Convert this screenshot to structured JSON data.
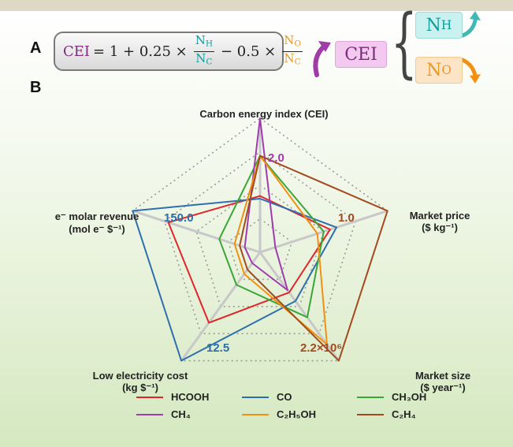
{
  "panel_a_label": "A",
  "panel_b_label": "B",
  "formula": {
    "lhs": "CEI",
    "eq": "= 1 + 0.25 ×",
    "frac1_num": "N",
    "frac1_num_sub": "H",
    "frac1_den": "N",
    "frac1_den_sub": "C",
    "minus": "− 0.5 ×",
    "frac2_num": "N",
    "frac2_num_sub": "O",
    "frac2_den": "N",
    "frac2_den_sub": "C"
  },
  "schematic": {
    "cei": "CEI",
    "nh": "N",
    "nh_sub": "H",
    "no": "N",
    "no_sub": "O"
  },
  "chart_data": {
    "type": "radar",
    "axes": [
      {
        "label": "Carbon energy index (CEI)",
        "max_label": "2.0",
        "max_label_color": "#a03ca8"
      },
      {
        "label": "Market price",
        "unit": "($ kg⁻¹)",
        "max_label": "1.0",
        "max_label_color": "#a34a1f"
      },
      {
        "label": "Market size",
        "unit": "($ year⁻¹)",
        "max_label": "2.2×10⁶",
        "max_label_color": "#a34a1f"
      },
      {
        "label": "Low electricity cost",
        "unit": "(kg $⁻¹)",
        "max_label": "12.5",
        "max_label_color": "#2e6faa"
      },
      {
        "label": "e⁻ molar revenue",
        "unit": "(mol e⁻ $⁻¹)",
        "max_label": "150.0",
        "max_label_color": "#2e6faa"
      }
    ],
    "grid": {
      "rings": 4,
      "style": "dotted"
    },
    "series": [
      {
        "name": "HCOOH",
        "color": "#e0262a",
        "values": [
          0.42,
          0.55,
          0.37,
          0.65,
          0.72
        ]
      },
      {
        "name": "CO",
        "color": "#2f6fad",
        "values": [
          0.4,
          0.6,
          0.45,
          1.0,
          1.0
        ]
      },
      {
        "name": "CH₃OH",
        "color": "#3aa637",
        "values": [
          0.72,
          0.5,
          0.6,
          0.3,
          0.32
        ]
      },
      {
        "name": "CH₄",
        "color": "#9f3cae",
        "values": [
          1.0,
          0.12,
          0.35,
          0.1,
          0.12
        ]
      },
      {
        "name": "C₂H₅OH",
        "color": "#f29111",
        "values": [
          0.72,
          0.45,
          0.85,
          0.2,
          0.2
        ]
      },
      {
        "name": "C₂H₄",
        "color": "#a34a1f",
        "values": [
          0.72,
          1.0,
          1.0,
          0.16,
          0.16
        ]
      }
    ]
  }
}
